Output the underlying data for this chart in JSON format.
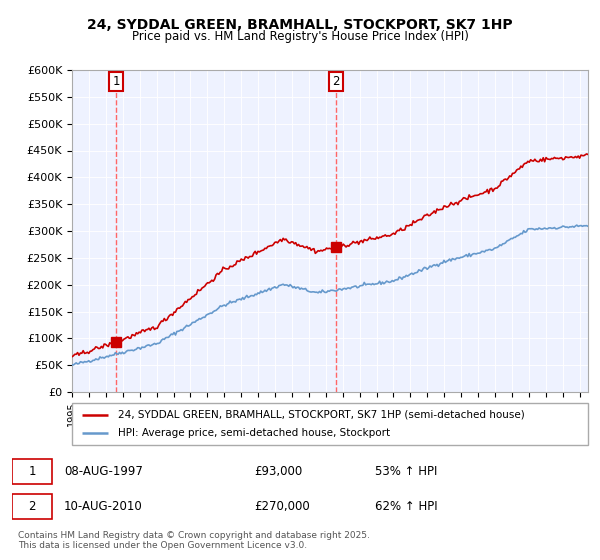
{
  "title": "24, SYDDAL GREEN, BRAMHALL, STOCKPORT, SK7 1HP",
  "subtitle": "Price paid vs. HM Land Registry's House Price Index (HPI)",
  "ylabel_ticks": [
    "£0",
    "£50K",
    "£100K",
    "£150K",
    "£200K",
    "£250K",
    "£300K",
    "£350K",
    "£400K",
    "£450K",
    "£500K",
    "£550K",
    "£600K"
  ],
  "ylim": [
    0,
    600000
  ],
  "ytick_vals": [
    0,
    50000,
    100000,
    150000,
    200000,
    250000,
    300000,
    350000,
    400000,
    450000,
    500000,
    550000,
    600000
  ],
  "sale1_date": 1997.6,
  "sale1_price": 93000,
  "sale1_label": "1",
  "sale2_date": 2010.6,
  "sale2_price": 270000,
  "sale2_label": "2",
  "legend_line1": "24, SYDDAL GREEN, BRAMHALL, STOCKPORT, SK7 1HP (semi-detached house)",
  "legend_line2": "HPI: Average price, semi-detached house, Stockport",
  "footnote": "Contains HM Land Registry data © Crown copyright and database right 2025.\nThis data is licensed under the Open Government Licence v3.0.",
  "house_color": "#cc0000",
  "hpi_color": "#6699cc",
  "background_color": "#eef2ff",
  "xmin": 1995,
  "xmax": 2025.5
}
